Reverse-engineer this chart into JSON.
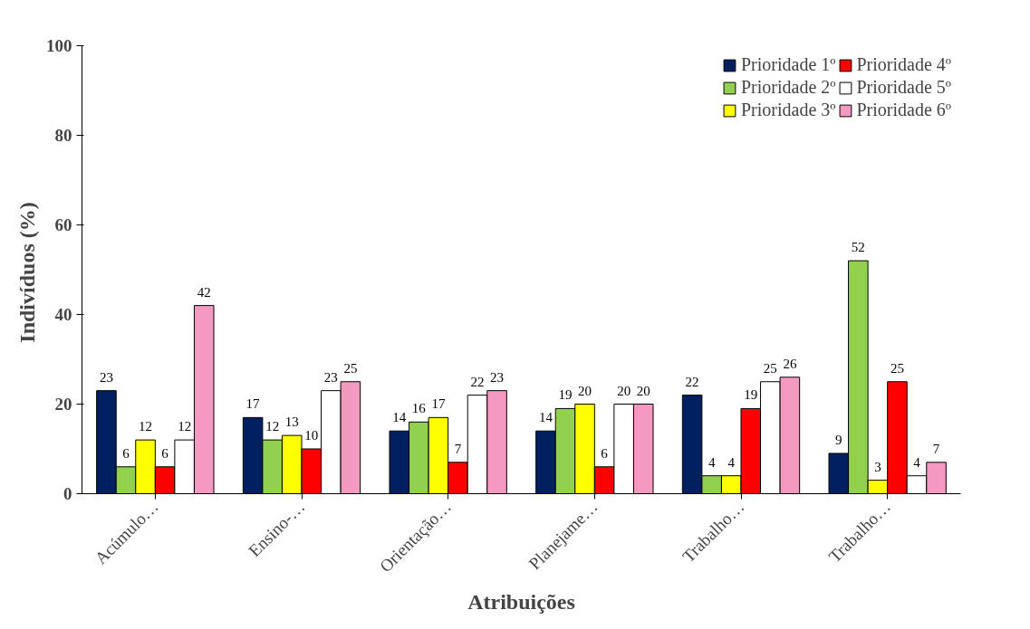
{
  "chart_data": {
    "type": "bar",
    "xlabel": "Atribuições",
    "ylabel": "Indivíduos  (%)",
    "categories": [
      "Acúmulo…",
      "Ensino-…",
      "Orientação…",
      "Planejame…",
      "Trabalho…",
      "Trabalho…"
    ],
    "series": [
      {
        "name": "Prioridade 1º",
        "color": "#002060",
        "values": [
          23,
          17,
          14,
          14,
          22,
          9
        ]
      },
      {
        "name": "Prioridade 2º",
        "color": "#92d050",
        "values": [
          6,
          12,
          16,
          19,
          4,
          52
        ]
      },
      {
        "name": "Prioridade 3º",
        "color": "#ffff00",
        "values": [
          12,
          13,
          17,
          20,
          4,
          3
        ]
      },
      {
        "name": "Prioridade 4º",
        "color": "#ff0000",
        "values": [
          6,
          10,
          7,
          6,
          19,
          25
        ]
      },
      {
        "name": "Prioridade 5º",
        "color": "#ffffff",
        "values": [
          12,
          23,
          22,
          20,
          25,
          4
        ]
      },
      {
        "name": "Prioridade 6º",
        "color": "#f49ac1",
        "values": [
          42,
          25,
          23,
          20,
          26,
          7
        ]
      }
    ],
    "ylim": [
      0,
      100
    ],
    "yticks": [
      0,
      20,
      40,
      60,
      80,
      100
    ],
    "data_labels": true,
    "grid": false,
    "legend": "top right"
  }
}
